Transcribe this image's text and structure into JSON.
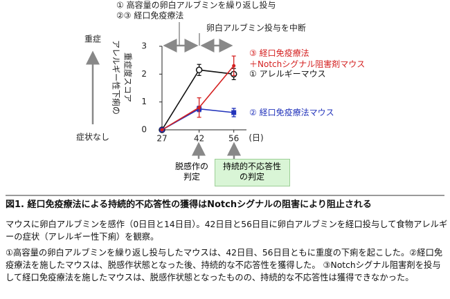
{
  "chart_data": {
    "type": "line",
    "x": [
      27,
      42,
      56
    ],
    "xlim": [
      27,
      60
    ],
    "xticks": [
      27,
      42,
      56
    ],
    "x_unit": "(日)",
    "ylim": [
      0,
      3
    ],
    "yticks": [
      0,
      1,
      2,
      3
    ],
    "ylabel": [
      "アレルギー性下痢の",
      "重症度スコア"
    ],
    "ylabel_top": "重症",
    "ylabel_bottom": "症状なし",
    "series": [
      {
        "name": "① アレルギーマウス",
        "color": "#111111",
        "marker": "open-circle",
        "values": [
          0,
          2.15,
          2.0
        ],
        "errors": [
          0,
          0.2,
          0.2
        ]
      },
      {
        "name": "② 経口免疫療法マウス",
        "color": "#2233bb",
        "marker": "square",
        "values": [
          0,
          0.75,
          0.62
        ],
        "errors": [
          0,
          0.1,
          0.15
        ]
      },
      {
        "name": "③ 経口免疫療法\n＋Notchシグナル阻害剤マウス",
        "color": "#d42020",
        "marker": "dot",
        "values": [
          0,
          0.8,
          2.3
        ],
        "errors": [
          0,
          0.35,
          0.35
        ]
      }
    ],
    "annotations": {
      "top1": "① 高容量の卵白アルブミンを繰り返し投与",
      "top2": "②③ 経口免疫療法",
      "top3": "卵白アルブミン投与を中断",
      "judge1": "脱感作の\n判定",
      "judge2": "持続的不応答性\nの判定"
    }
  },
  "caption": {
    "title": "図1. 経口免疫療法による持続的不応答性の獲得はNotchシグナルの阻害により阻止される",
    "p1": "マウスに卵白アルブミンを感作（0日目と14日目）。42日目と56日目に卵白アルブミンを経口投与して食物アレルギーの症状（アレルギー性下痢）を観察。",
    "p2": "①高容量の卵白アルブミンを繰り返し投与したマウスは、42日目、56日目ともに重度の下痢を起こした。②経口免疫療法を施したマウスは、脱感作状態となった後、持続的な不応答性を獲得した。 ③Notchシグナル阻害剤を投与して経口免疫療法を施したマウスは、脱感作状態となったものの、持続的な不応答性は獲得できなかった。"
  }
}
